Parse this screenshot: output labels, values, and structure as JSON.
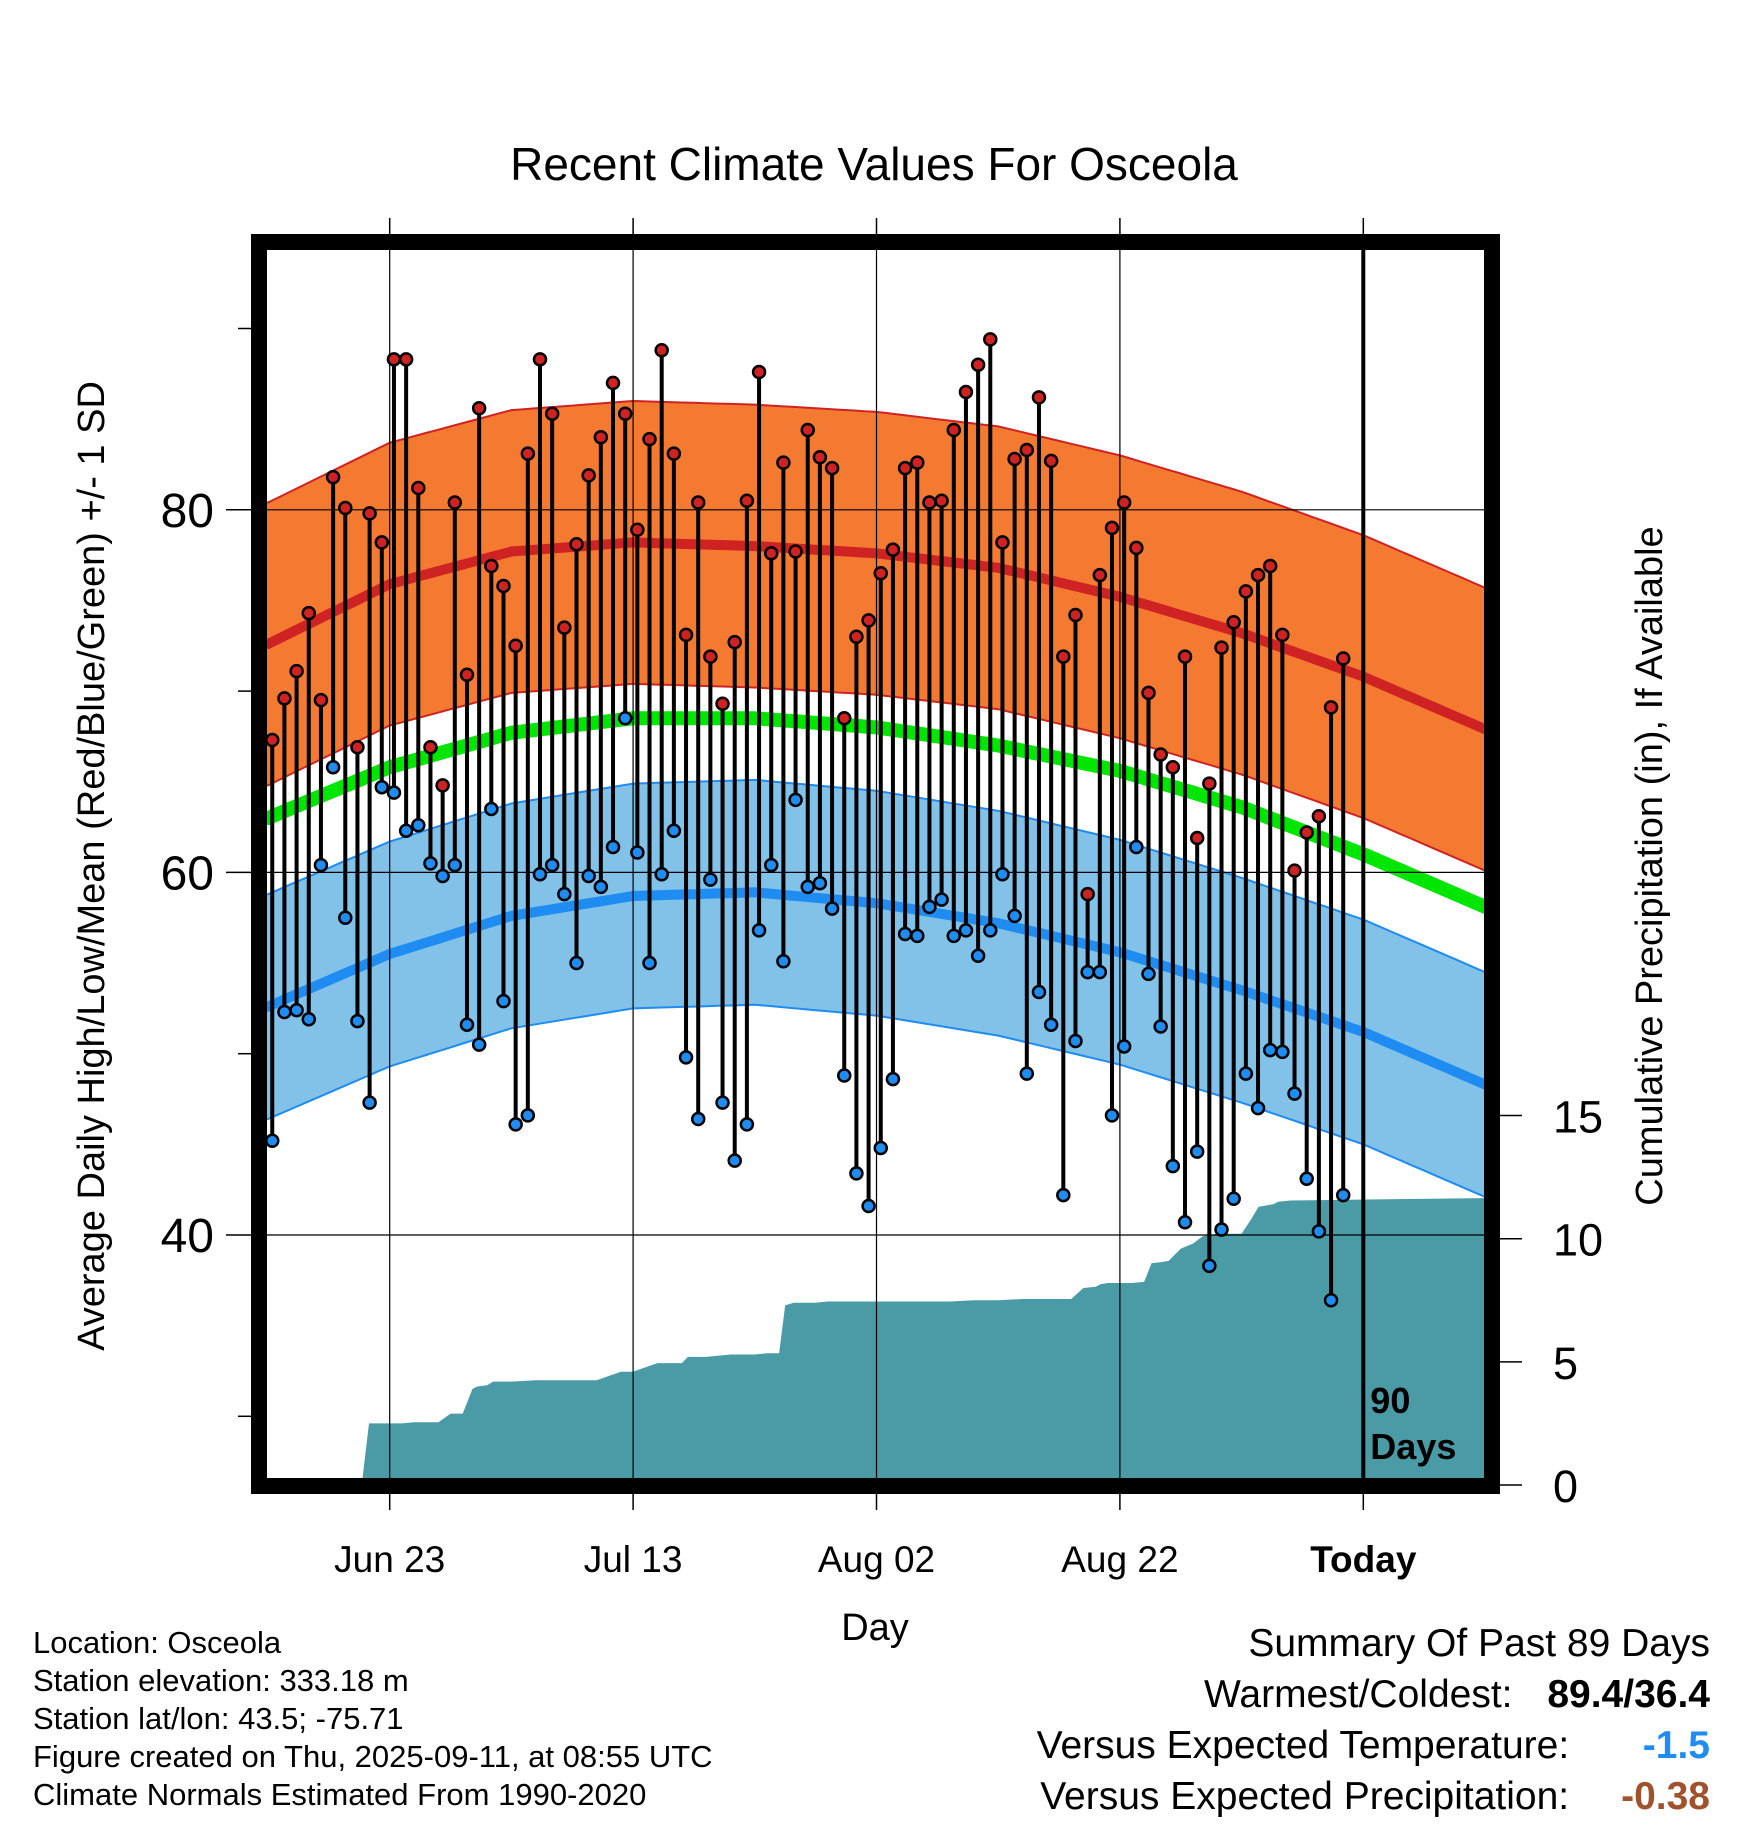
{
  "chart_data": {
    "type": "line",
    "title": "Recent Climate Values For Osceola",
    "xlabel": "Day",
    "ylabel_left": "Average Daily High/Low/Mean (Red/Blue/Green) +/- 1 SD",
    "ylabel_right": "Cumulative Precipitation (in), If Available",
    "x_tick_labels": [
      "Jun 23",
      "Jul 13",
      "Aug 02",
      "Aug 22",
      "Today"
    ],
    "x_tick_days": [
      10,
      30,
      50,
      70,
      90
    ],
    "xlim": [
      0,
      100
    ],
    "ylim_left": [
      27,
      95
    ],
    "y_ticks_left": [
      40,
      60,
      80
    ],
    "y_ticks_right": [
      0,
      5,
      10,
      15
    ],
    "ylim_right": [
      0,
      49.8
    ],
    "grid": true,
    "annotation": "90\nDays",
    "normal_high": {
      "days": [
        0,
        10,
        20,
        30,
        40,
        50,
        60,
        70,
        80,
        90,
        100
      ],
      "values": [
        72.6,
        75.9,
        77.7,
        78.2,
        78.0,
        77.6,
        76.8,
        75.2,
        73.2,
        70.8,
        67.9
      ]
    },
    "normal_high_sd": 7.8,
    "normal_low": {
      "days": [
        0,
        10,
        20,
        30,
        40,
        50,
        60,
        70,
        80,
        90,
        100
      ],
      "values": [
        52.6,
        55.5,
        57.6,
        58.7,
        58.9,
        58.3,
        57.2,
        55.6,
        53.5,
        51.2,
        48.3
      ]
    },
    "normal_low_sd": 6.2,
    "normal_mean": {
      "days": [
        0,
        10,
        20,
        30,
        40,
        50,
        60,
        70,
        80,
        90,
        100
      ],
      "values": [
        63.0,
        65.8,
        67.7,
        68.5,
        68.5,
        68.0,
        67.0,
        65.6,
        63.6,
        61.0,
        58.1
      ]
    },
    "daily_high": [
      67.3,
      69.6,
      71.1,
      74.3,
      69.5,
      81.8,
      80.1,
      66.9,
      79.8,
      78.2,
      88.3,
      88.3,
      81.2,
      66.9,
      64.8,
      80.4,
      70.9,
      85.6,
      76.9,
      75.8,
      72.5,
      83.1,
      88.3,
      85.3,
      73.5,
      78.1,
      81.9,
      84.0,
      87.0,
      85.3,
      78.9,
      83.9,
      88.8,
      83.1,
      73.1,
      80.4,
      71.9,
      69.3,
      72.7,
      80.5,
      87.6,
      77.6,
      82.6,
      77.7,
      84.4,
      82.9,
      82.3,
      68.5,
      73.0,
      73.9,
      76.5,
      77.8,
      82.3,
      82.6,
      80.4,
      80.5,
      84.4,
      86.5,
      88.0,
      89.4,
      78.2,
      82.8,
      83.3,
      86.2,
      82.7,
      71.9,
      74.2,
      58.8,
      76.4,
      79.0,
      80.4,
      77.9,
      69.9,
      66.5,
      65.8,
      71.9,
      61.9,
      64.9,
      72.4,
      73.8,
      75.5,
      76.4,
      76.9,
      73.1,
      60.1,
      62.2,
      63.1,
      69.1,
      71.8
    ],
    "daily_low": [
      45.2,
      52.3,
      52.4,
      51.9,
      60.4,
      65.8,
      57.5,
      51.8,
      47.3,
      64.7,
      64.4,
      62.3,
      62.6,
      60.5,
      59.8,
      60.4,
      51.6,
      50.5,
      63.5,
      52.9,
      46.1,
      46.6,
      59.9,
      60.4,
      58.8,
      55.0,
      59.8,
      59.2,
      61.4,
      68.5,
      61.1,
      55.0,
      59.9,
      62.3,
      49.8,
      46.4,
      59.6,
      47.3,
      44.1,
      46.1,
      56.8,
      60.4,
      55.1,
      64.0,
      59.2,
      59.4,
      58.0,
      48.8,
      43.4,
      41.6,
      44.8,
      48.6,
      56.6,
      56.5,
      58.1,
      58.5,
      56.5,
      56.8,
      55.4,
      56.8,
      59.9,
      57.6,
      48.9,
      53.4,
      51.6,
      42.2,
      50.7,
      54.5,
      54.5,
      46.6,
      50.4,
      61.4,
      54.4,
      51.5,
      43.8,
      40.7,
      44.6,
      38.3,
      40.3,
      42.0,
      48.9,
      47.0,
      50.2,
      50.1,
      47.8,
      43.1,
      40.2,
      36.4,
      42.2
    ],
    "cumulative_precip": {
      "days": [
        7.7,
        8.3,
        11,
        12,
        14,
        15,
        16,
        16.8,
        17.2,
        18,
        18.5,
        20,
        22,
        24,
        25,
        27,
        29,
        30,
        32,
        34,
        34.5,
        36,
        38,
        40,
        41,
        42,
        42.5,
        43.2,
        44,
        45,
        46,
        47,
        48,
        50,
        52,
        54,
        56,
        58,
        60,
        62,
        64,
        66,
        67,
        68,
        68.4,
        69,
        70,
        71,
        72,
        72.6,
        73.4,
        74,
        75,
        76,
        76.8,
        77.3,
        78,
        80,
        80.8,
        81.4,
        82.6,
        83,
        84,
        100
      ],
      "values": [
        0,
        2.5,
        2.5,
        2.55,
        2.55,
        2.9,
        2.9,
        3.9,
        4.0,
        4.05,
        4.2,
        4.2,
        4.25,
        4.25,
        4.25,
        4.25,
        4.6,
        4.6,
        4.95,
        4.95,
        5.2,
        5.2,
        5.3,
        5.3,
        5.35,
        5.35,
        7.3,
        7.4,
        7.4,
        7.4,
        7.45,
        7.45,
        7.45,
        7.45,
        7.45,
        7.45,
        7.45,
        7.5,
        7.5,
        7.55,
        7.55,
        7.55,
        8.0,
        8.05,
        8.15,
        8.2,
        8.2,
        8.2,
        8.25,
        9.0,
        9.05,
        9.1,
        9.6,
        9.8,
        10.1,
        10.15,
        10.2,
        10.2,
        10.8,
        11.3,
        11.4,
        11.5,
        11.55,
        11.65
      ]
    },
    "colors": {
      "high": "#cf2323",
      "high_band": "#f57a31",
      "low": "#1e8cf0",
      "low_band": "#82c1e8",
      "mean": "#00e600",
      "precip": "#4a9ba6"
    }
  },
  "footer": {
    "location": "Location: Osceola",
    "elevation": "Station elevation: 333.18 m",
    "latlon": "Station lat/lon: 43.5; -75.71",
    "created": "Figure created on Thu, 2025-09-11, at 08:55 UTC",
    "normals": "Climate Normals Estimated From 1990-2020"
  },
  "summary": {
    "title": "Summary Of Past 89 Days",
    "warm_cold_label": "Warmest/Coldest:",
    "warm_cold_value": "89.4/36.4",
    "temp_label": "Versus Expected Temperature:",
    "temp_value": "-1.5",
    "temp_color": "#1e8cf0",
    "precip_label": "Versus Expected Precipitation:",
    "precip_value": "-0.38",
    "precip_color": "#a0522d"
  }
}
